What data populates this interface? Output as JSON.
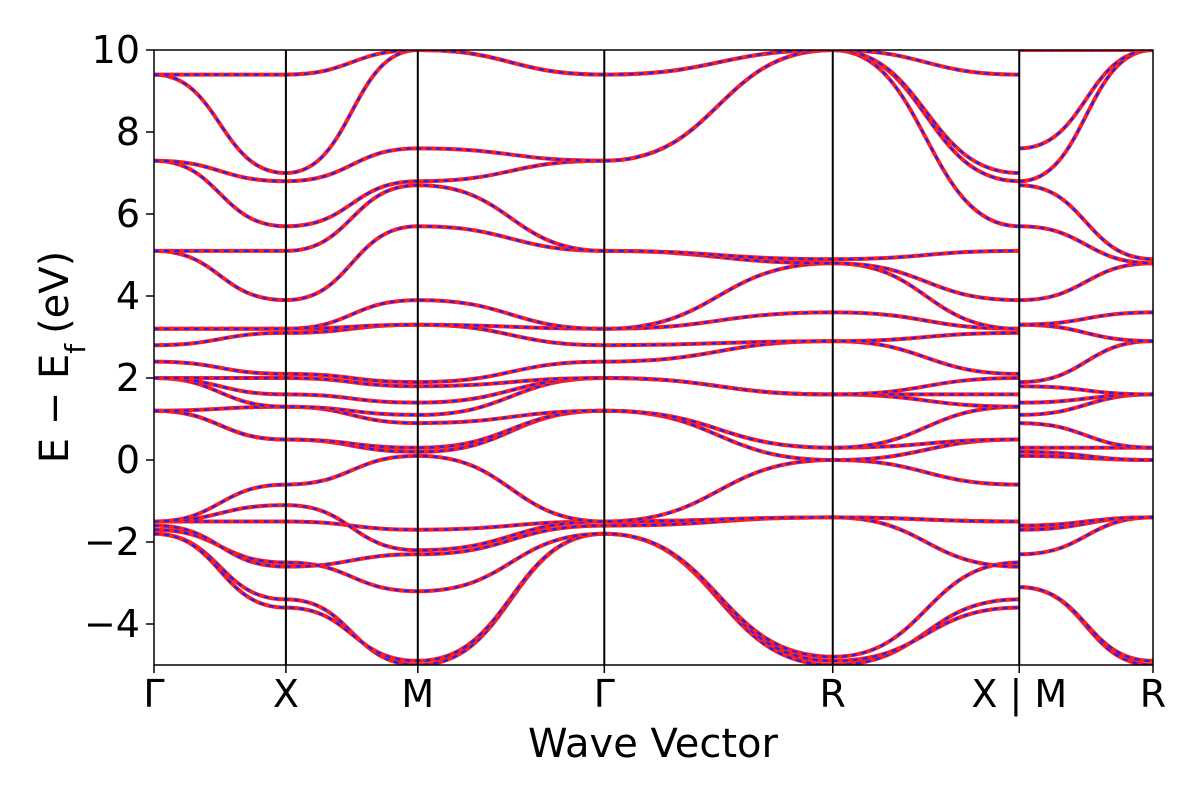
{
  "chart_data": {
    "type": "line",
    "title": "",
    "xlabel": "Wave Vector",
    "ylabel": "E − E",
    "ylabel_sub": "f",
    "ylabel_unit": "(eV)",
    "ylim": [
      -5,
      10
    ],
    "yticks": [
      -4,
      -2,
      0,
      2,
      4,
      6,
      8,
      10
    ],
    "ytick_labels": [
      "−4",
      "−2",
      "0",
      "2",
      "4",
      "6",
      "8",
      "10"
    ],
    "high_symmetry_points": [
      {
        "label": "Γ",
        "k": 0.0
      },
      {
        "label": "X",
        "k": 0.5
      },
      {
        "label": "M",
        "k": 1.0
      },
      {
        "label": "Γ",
        "k": 1.707
      },
      {
        "label": "R",
        "k": 2.573
      },
      {
        "label": "X | M",
        "k": 3.28
      },
      {
        "label": "R",
        "k": 3.787
      }
    ],
    "xlim": [
      0,
      3.787
    ],
    "segments": [
      [
        0,
        0.5
      ],
      [
        0.5,
        1.0
      ],
      [
        1.0,
        1.707
      ],
      [
        1.707,
        2.573
      ],
      [
        2.573,
        3.28
      ],
      [
        3.28,
        3.787
      ]
    ],
    "grid": false,
    "legend": "none",
    "series_styles": {
      "solid_color": "#ff1f1f",
      "dashed_color": "#2020ff"
    },
    "bands": [
      [
        -1.8,
        -3.4,
        -5.0,
        -1.8,
        -5.0,
        -3.4,
        -3.1,
        -5.0
      ],
      [
        -1.8,
        -3.6,
        -4.9,
        -1.8,
        -4.9,
        -3.6,
        -3.1,
        -4.9
      ],
      [
        -1.7,
        -2.5,
        -3.2,
        -1.8,
        -4.8,
        -2.5,
        -2.3,
        -1.4
      ],
      [
        -1.6,
        -2.6,
        -2.3,
        -1.6,
        -1.4,
        -2.6,
        -1.7,
        -1.4
      ],
      [
        -1.5,
        -1.5,
        -1.7,
        -1.5,
        -1.4,
        -1.5,
        -1.6,
        -1.4
      ],
      [
        -1.5,
        -1.1,
        -2.2,
        -1.5,
        -1.4,
        -1.5,
        -1.6,
        -1.4
      ],
      [
        -1.5,
        -0.6,
        0.1,
        -1.5,
        0.0,
        -0.6,
        0.1,
        0.0
      ],
      [
        1.2,
        0.5,
        0.2,
        1.2,
        0.0,
        0.5,
        0.2,
        0.0
      ],
      [
        1.2,
        0.5,
        0.3,
        1.2,
        0.3,
        0.5,
        0.3,
        0.3
      ],
      [
        1.2,
        1.3,
        0.9,
        1.2,
        0.3,
        1.3,
        0.9,
        0.3
      ],
      [
        2.0,
        1.3,
        1.1,
        2.0,
        1.6,
        1.3,
        1.1,
        1.6
      ],
      [
        2.0,
        1.6,
        1.4,
        2.0,
        1.6,
        1.6,
        1.4,
        1.6
      ],
      [
        2.0,
        2.0,
        1.8,
        2.0,
        1.6,
        2.0,
        1.8,
        1.6
      ],
      [
        2.4,
        2.1,
        1.9,
        2.4,
        2.9,
        2.1,
        1.9,
        2.9
      ],
      [
        2.8,
        3.1,
        3.3,
        2.8,
        2.9,
        3.1,
        3.3,
        2.9
      ],
      [
        3.2,
        3.2,
        3.3,
        3.2,
        3.6,
        3.2,
        3.3,
        3.6
      ],
      [
        3.2,
        3.2,
        3.9,
        3.2,
        4.8,
        3.2,
        3.9,
        4.8
      ],
      [
        5.1,
        3.9,
        5.7,
        5.1,
        4.8,
        3.9,
        5.7,
        4.8
      ],
      [
        5.1,
        5.1,
        6.7,
        5.1,
        4.9,
        5.1,
        6.7,
        4.9
      ],
      [
        7.3,
        5.7,
        6.8,
        7.3,
        10.0,
        5.7,
        6.8,
        10.0
      ],
      [
        7.3,
        6.8,
        7.6,
        7.3,
        10.0,
        6.8,
        7.6,
        10.0
      ],
      [
        9.4,
        7.0,
        10.0,
        9.4,
        10.0,
        7.0,
        10.0,
        10.0
      ],
      [
        9.4,
        9.4,
        10.0,
        9.4,
        10.0,
        9.4,
        10.0,
        10.0
      ]
    ]
  }
}
